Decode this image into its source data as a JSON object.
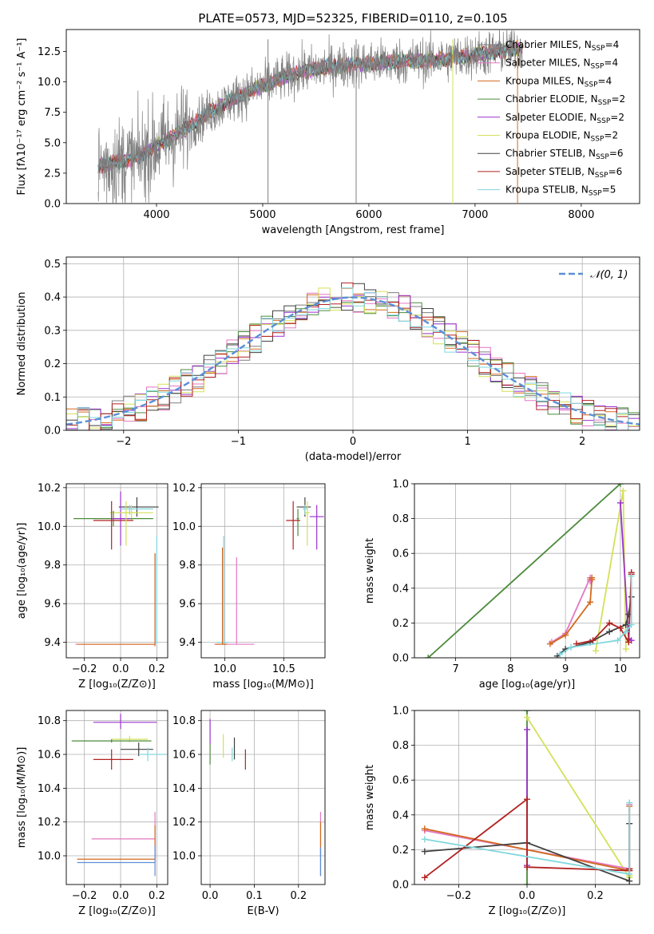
{
  "colors": {
    "chabrier_miles": "#7f7f7f",
    "salpeter_miles": "#e377c2",
    "kroupa_miles": "#d2691e",
    "chabrier_elodie": "#4b8b3b",
    "salpeter_elodie": "#9932cc",
    "kroupa_elodie": "#d4e157",
    "chabrier_stelib": "#404040",
    "salpeter_stelib": "#b22222",
    "kroupa_stelib": "#7fd7dd",
    "normal": "#5b8fd6"
  },
  "chart_data": [
    {
      "id": "spectrum",
      "type": "line",
      "title": "PLATE=0573, MJD=52325, FIBERID=0110, z=0.105",
      "xlabel": "wavelength [Angstrom, rest frame]",
      "ylabel": "Flux [fλ10⁻¹⁷ erg cm⁻² s⁻¹ A⁻¹]",
      "xlim": [
        3150,
        8550
      ],
      "ylim": [
        0,
        14.3
      ],
      "xticks": [
        "4000",
        "5000",
        "6000",
        "7000",
        "8000"
      ],
      "yticks": [
        "0.0",
        "2.5",
        "5.0",
        "7.5",
        "10.0",
        "12.5"
      ],
      "data_continuum": {
        "x": [
          3450,
          3600,
          3800,
          3950,
          4100,
          4300,
          4500,
          4700,
          4900,
          5100,
          5300,
          5500,
          5800,
          6000,
          6300,
          6600,
          7000,
          7300,
          7450
        ],
        "y": [
          3.0,
          3.4,
          3.6,
          4.5,
          5.2,
          6.3,
          7.5,
          8.5,
          9.3,
          10.0,
          10.7,
          11.1,
          11.4,
          11.5,
          11.7,
          11.8,
          12.2,
          12.6,
          12.8
        ]
      },
      "legend": [
        {
          "label": "Chabrier MILES, N",
          "sub": "SSP",
          "suffix": "=4",
          "color_key": "chabrier_miles"
        },
        {
          "label": "Salpeter MILES, N",
          "sub": "SSP",
          "suffix": "=4",
          "color_key": "salpeter_miles"
        },
        {
          "label": "Kroupa MILES, N",
          "sub": "SSP",
          "suffix": "=4",
          "color_key": "kroupa_miles"
        },
        {
          "label": "Chabrier ELODIE, N",
          "sub": "SSP",
          "suffix": "=2",
          "color_key": "chabrier_elodie"
        },
        {
          "label": "Salpeter ELODIE, N",
          "sub": "SSP",
          "suffix": "=2",
          "color_key": "salpeter_elodie"
        },
        {
          "label": "Kroupa ELODIE, N",
          "sub": "SSP",
          "suffix": "=2",
          "color_key": "kroupa_elodie"
        },
        {
          "label": "Chabrier STELIB, N",
          "sub": "SSP",
          "suffix": "=6",
          "color_key": "chabrier_stelib"
        },
        {
          "label": "Salpeter STELIB, N",
          "sub": "SSP",
          "suffix": "=6",
          "color_key": "salpeter_stelib"
        },
        {
          "label": "Kroupa STELIB, N",
          "sub": "SSP",
          "suffix": "=5",
          "color_key": "kroupa_stelib"
        }
      ]
    },
    {
      "id": "residuals",
      "type": "bar",
      "xlabel": "(data-model)/error",
      "ylabel": "Normed distribution",
      "xlim": [
        -2.5,
        2.5
      ],
      "ylim": [
        0,
        0.52
      ],
      "xticks": [
        "−2",
        "−1",
        "0",
        "1",
        "2"
      ],
      "yticks": [
        "0.0",
        "0.1",
        "0.2",
        "0.3",
        "0.4",
        "0.5"
      ],
      "grid": true,
      "legend": "𝒩(0, 1)",
      "legend_position": "top-right",
      "bin_width": 0.1
    },
    {
      "id": "age_vs_Z",
      "type": "scatter",
      "xlabel": "Z [log₁₀(Z/Z⊙)]",
      "ylabel": "age  [log₁₀(age/yr)]",
      "xlim": [
        -0.3,
        0.26
      ],
      "ylim": [
        9.32,
        10.22
      ],
      "xticks": [
        "−0.2",
        "0.0",
        "0.2"
      ],
      "yticks": [
        "9.4",
        "9.6",
        "9.8",
        "10.0",
        "10.2"
      ],
      "points": [
        {
          "c": "chabrier_stelib",
          "x": 0.09,
          "y": 10.1,
          "xe": [
            0.1,
            0.12
          ],
          "ye": [
            0.05,
            0.05
          ]
        },
        {
          "c": "kroupa_elodie",
          "x": 0.06,
          "y": 10.07,
          "xe": [
            0.12,
            0.12
          ],
          "ye": [
            0.04,
            0.04
          ]
        },
        {
          "c": "chabrier_elodie",
          "x": -0.04,
          "y": 10.04,
          "xe": [
            0.22,
            0.22
          ],
          "ye": [
            0.04,
            0.04
          ]
        },
        {
          "c": "salpeter_elodie",
          "x": 0.0,
          "y": 10.04,
          "xe": [
            0.05,
            0.05
          ],
          "ye": [
            0.14,
            0.14
          ]
        },
        {
          "c": "salpeter_stelib",
          "x": -0.05,
          "y": 10.03,
          "xe": [
            0.1,
            0.12
          ],
          "ye": [
            0.15,
            0.1
          ]
        },
        {
          "c": "kroupa_stelib",
          "x": 0.05,
          "y": 10.09,
          "xe": [
            0.05,
            0.13
          ],
          "ye": [
            0.03,
            0.02
          ]
        },
        {
          "c": "kroupa_elodie",
          "x": 0.03,
          "y": 10.07,
          "xe": [
            0.05,
            0.05
          ],
          "ye": [
            0.17,
            0.06
          ]
        },
        {
          "c": "kroupa_stelib",
          "x": 0.2,
          "y": 9.4,
          "xe": [
            0.0,
            0.0
          ],
          "ye": [
            0.01,
            0.55
          ]
        },
        {
          "c": "salpeter_miles",
          "x": 0.19,
          "y": 9.39,
          "xe": [
            0.44,
            0.0
          ],
          "ye": [
            0.01,
            0.47
          ]
        },
        {
          "c": "kroupa_miles",
          "x": 0.19,
          "y": 9.39,
          "xe": [
            0.43,
            0.0
          ],
          "ye": [
            0.01,
            0.47
          ]
        }
      ]
    },
    {
      "id": "age_vs_mass",
      "type": "scatter",
      "xlabel": "mass [log₁₀(M/M⊙)]",
      "ylabel": "",
      "xlim": [
        9.8,
        10.85
      ],
      "ylim": [
        9.32,
        10.22
      ],
      "xticks": [
        "10.0",
        "10.5"
      ],
      "yticks": [
        "9.4",
        "9.6",
        "9.8",
        "10.0",
        "10.2"
      ],
      "points": [
        {
          "c": "chabrier_stelib",
          "x": 10.68,
          "y": 10.1,
          "xe": [
            0.07,
            0.05
          ],
          "ye": [
            0.05,
            0.05
          ]
        },
        {
          "c": "salpeter_elodie",
          "x": 10.78,
          "y": 10.05,
          "xe": [
            0.06,
            0.06
          ],
          "ye": [
            0.17,
            0.06
          ]
        },
        {
          "c": "chabrier_elodie",
          "x": 10.62,
          "y": 10.04,
          "xe": [
            0.01,
            0.01
          ],
          "ye": [
            0.09,
            0.05
          ]
        },
        {
          "c": "salpeter_stelib",
          "x": 10.58,
          "y": 10.03,
          "xe": [
            0.06,
            0.06
          ],
          "ye": [
            0.15,
            0.1
          ]
        },
        {
          "c": "kroupa_elodie",
          "x": 10.7,
          "y": 10.07,
          "xe": [
            0.02,
            0.02
          ],
          "ye": [
            0.17,
            0.06
          ]
        },
        {
          "c": "kroupa_stelib",
          "x": 10.68,
          "y": 10.09,
          "xe": [
            0.02,
            0.02
          ],
          "ye": [
            0.03,
            0.02
          ]
        },
        {
          "c": "kroupa_stelib",
          "x": 9.99,
          "y": 9.4,
          "xe": [
            0.06,
            0.04
          ],
          "ye": [
            0.01,
            0.55
          ]
        },
        {
          "c": "salpeter_miles",
          "x": 10.1,
          "y": 9.39,
          "xe": [
            0.19,
            0.15
          ],
          "ye": [
            0.0,
            0.45
          ]
        },
        {
          "c": "kroupa_miles",
          "x": 9.98,
          "y": 9.39,
          "xe": [
            0.06,
            0.04
          ],
          "ye": [
            0.0,
            0.5
          ]
        }
      ]
    },
    {
      "id": "weight_vs_age",
      "type": "line",
      "xlabel": "age  [log₁₀(age/yr)]",
      "ylabel": "mass weight",
      "xlim": [
        6.25,
        10.35
      ],
      "ylim": [
        0,
        1.0
      ],
      "xticks": [
        "7",
        "8",
        "9",
        "10"
      ],
      "yticks": [
        "0.0",
        "0.2",
        "0.4",
        "0.6",
        "0.8",
        "1.0"
      ],
      "series": [
        {
          "c": "chabrier_elodie",
          "x": [
            6.5,
            10.0
          ],
          "y": [
            0.0,
            1.0
          ]
        },
        {
          "c": "kroupa_elodie",
          "x": [
            9.55,
            10.05,
            10.1
          ],
          "y": [
            0.04,
            0.96,
            0.05
          ]
        },
        {
          "c": "salpeter_elodie",
          "x": [
            10.0,
            10.15,
            10.2
          ],
          "y": [
            0.89,
            0.11,
            0.1
          ]
        },
        {
          "c": "salpeter_miles",
          "x": [
            8.75,
            9.0,
            9.45,
            9.45,
            9.45
          ],
          "y": [
            0.09,
            0.14,
            0.46,
            0.45,
            0.44
          ]
        },
        {
          "c": "kroupa_miles",
          "x": [
            8.72,
            9.0,
            9.45,
            9.48,
            9.48
          ],
          "y": [
            0.08,
            0.13,
            0.32,
            0.45,
            0.46
          ]
        },
        {
          "c": "chabrier_stelib",
          "x": [
            8.85,
            9.0,
            9.45,
            9.8,
            10.1,
            10.15,
            10.2
          ],
          "y": [
            0.01,
            0.05,
            0.09,
            0.15,
            0.19,
            0.25,
            0.35
          ]
        },
        {
          "c": "salpeter_stelib",
          "x": [
            9.2,
            9.5,
            9.8,
            10.0,
            10.15,
            10.2,
            10.2
          ],
          "y": [
            0.08,
            0.1,
            0.2,
            0.17,
            0.09,
            0.49,
            0.48
          ]
        },
        {
          "c": "kroupa_stelib",
          "x": [
            8.9,
            9.1,
            9.95,
            10.1,
            10.2,
            10.2
          ],
          "y": [
            0.02,
            0.06,
            0.1,
            0.15,
            0.19,
            0.47
          ]
        }
      ]
    },
    {
      "id": "mass_vs_Z",
      "type": "scatter",
      "xlabel": "Z [log₁₀(Z/Z⊙)]",
      "ylabel": "mass [log₁₀(M/M⊙)]",
      "xlim": [
        -0.3,
        0.26
      ],
      "ylim": [
        9.83,
        10.86
      ],
      "xticks": [
        "−0.2",
        "0.0",
        "0.2"
      ],
      "yticks": [
        "10.0",
        "10.2",
        "10.4",
        "10.6",
        "10.8"
      ],
      "points": [
        {
          "c": "salpeter_elodie",
          "x": 0.0,
          "y": 10.79,
          "xe": [
            0.15,
            0.2
          ],
          "ye": [
            0.04,
            0.05
          ]
        },
        {
          "c": "kroupa_elodie",
          "x": 0.05,
          "y": 10.69,
          "xe": [
            0.1,
            0.1
          ],
          "ye": [
            0.02,
            0.02
          ]
        },
        {
          "c": "chabrier_elodie",
          "x": -0.05,
          "y": 10.68,
          "xe": [
            0.22,
            0.22
          ],
          "ye": [
            0.01,
            0.01
          ]
        },
        {
          "c": "chabrier_stelib",
          "x": 0.1,
          "y": 10.63,
          "xe": [
            0.1,
            0.08
          ],
          "ye": [
            0.04,
            0.04
          ]
        },
        {
          "c": "kroupa_stelib",
          "x": 0.15,
          "y": 10.6,
          "xe": [
            0.05,
            0.1
          ],
          "ye": [
            0.04,
            0.04
          ]
        },
        {
          "c": "salpeter_stelib",
          "x": -0.05,
          "y": 10.57,
          "xe": [
            0.1,
            0.12
          ],
          "ye": [
            0.06,
            0.06
          ]
        },
        {
          "c": "salpeter_miles",
          "x": 0.19,
          "y": 10.1,
          "xe": [
            0.35,
            0.0
          ],
          "ye": [
            0.12,
            0.16
          ]
        },
        {
          "c": "kroupa_miles",
          "x": 0.19,
          "y": 9.98,
          "xe": [
            0.43,
            0.0
          ],
          "ye": [
            0.02,
            0.2
          ]
        },
        {
          "c": "normal",
          "x": 0.19,
          "y": 9.96,
          "xe": [
            0.43,
            0.0
          ],
          "ye": [
            0.08,
            0.1
          ]
        }
      ]
    },
    {
      "id": "mass_vs_ebv",
      "type": "scatter",
      "xlabel": "E(B-V)",
      "ylabel": "",
      "xlim": [
        -0.02,
        0.26
      ],
      "ylim": [
        9.83,
        10.86
      ],
      "xticks": [
        "0.0",
        "0.1",
        "0.2"
      ],
      "yticks": [
        "10.0",
        "10.2",
        "10.4",
        "10.6",
        "10.8"
      ],
      "points": [
        {
          "c": "salpeter_elodie",
          "x": 0.0,
          "y": 10.72,
          "xe": [
            0,
            0
          ],
          "ye": [
            0.06,
            0.09
          ]
        },
        {
          "c": "chabrier_elodie",
          "x": 0.0,
          "y": 10.61,
          "xe": [
            0,
            0
          ],
          "ye": [
            0.07,
            0.05
          ]
        },
        {
          "c": "kroupa_elodie",
          "x": 0.03,
          "y": 10.64,
          "xe": [
            0,
            0
          ],
          "ye": [
            0.06,
            0.08
          ]
        },
        {
          "c": "chabrier_stelib",
          "x": 0.055,
          "y": 10.63,
          "xe": [
            0,
            0
          ],
          "ye": [
            0.06,
            0.07
          ]
        },
        {
          "c": "kroupa_stelib",
          "x": 0.05,
          "y": 10.6,
          "xe": [
            0,
            0
          ],
          "ye": [
            0.04,
            0.04
          ]
        },
        {
          "c": "salpeter_stelib",
          "x": 0.08,
          "y": 10.57,
          "xe": [
            0,
            0
          ],
          "ye": [
            0.06,
            0.06
          ]
        },
        {
          "c": "salpeter_miles",
          "x": 0.25,
          "y": 10.1,
          "xe": [
            0,
            0
          ],
          "ye": [
            0.1,
            0.16
          ]
        },
        {
          "c": "kroupa_miles",
          "x": 0.25,
          "y": 10.0,
          "xe": [
            0,
            0
          ],
          "ye": [
            0.12,
            0.2
          ]
        },
        {
          "c": "normal",
          "x": 0.25,
          "y": 9.95,
          "xe": [
            0,
            0
          ],
          "ye": [
            0.07,
            0.1
          ]
        }
      ]
    },
    {
      "id": "weight_vs_Z",
      "type": "line",
      "xlabel": "Z [log₁₀(Z/Z⊙)]",
      "ylabel": "mass weight",
      "xlim": [
        -0.33,
        0.33
      ],
      "ylim": [
        0,
        1.0
      ],
      "xticks": [
        "−0.2",
        "0.0",
        "0.2"
      ],
      "yticks": [
        "0.0",
        "0.2",
        "0.4",
        "0.6",
        "0.8",
        "1.0"
      ],
      "series": [
        {
          "c": "chabrier_elodie",
          "x": [
            0.0,
            0.0
          ],
          "y": [
            0.0,
            1.0
          ]
        },
        {
          "c": "salpeter_elodie",
          "x": [
            0.0,
            0.0
          ],
          "y": [
            0.11,
            0.89
          ]
        },
        {
          "c": "kroupa_elodie",
          "x": [
            0.0,
            0.3,
            0.3
          ],
          "y": [
            0.96,
            0.04,
            0.05
          ]
        },
        {
          "c": "salpeter_miles",
          "x": [
            -0.3,
            0.3,
            0.3
          ],
          "y": [
            0.31,
            0.09,
            0.46
          ]
        },
        {
          "c": "kroupa_miles",
          "x": [
            -0.3,
            0.3,
            0.3
          ],
          "y": [
            0.32,
            0.08,
            0.45
          ]
        },
        {
          "c": "chabrier_stelib",
          "x": [
            -0.3,
            0.0,
            0.3,
            0.3
          ],
          "y": [
            0.19,
            0.24,
            0.02,
            0.35
          ]
        },
        {
          "c": "salpeter_stelib",
          "x": [
            -0.3,
            0.0,
            0.0,
            0.3,
            0.3
          ],
          "y": [
            0.04,
            0.49,
            0.1,
            0.08,
            0.09
          ]
        },
        {
          "c": "kroupa_stelib",
          "x": [
            -0.3,
            0.3,
            0.3
          ],
          "y": [
            0.26,
            0.06,
            0.47
          ]
        }
      ]
    }
  ]
}
